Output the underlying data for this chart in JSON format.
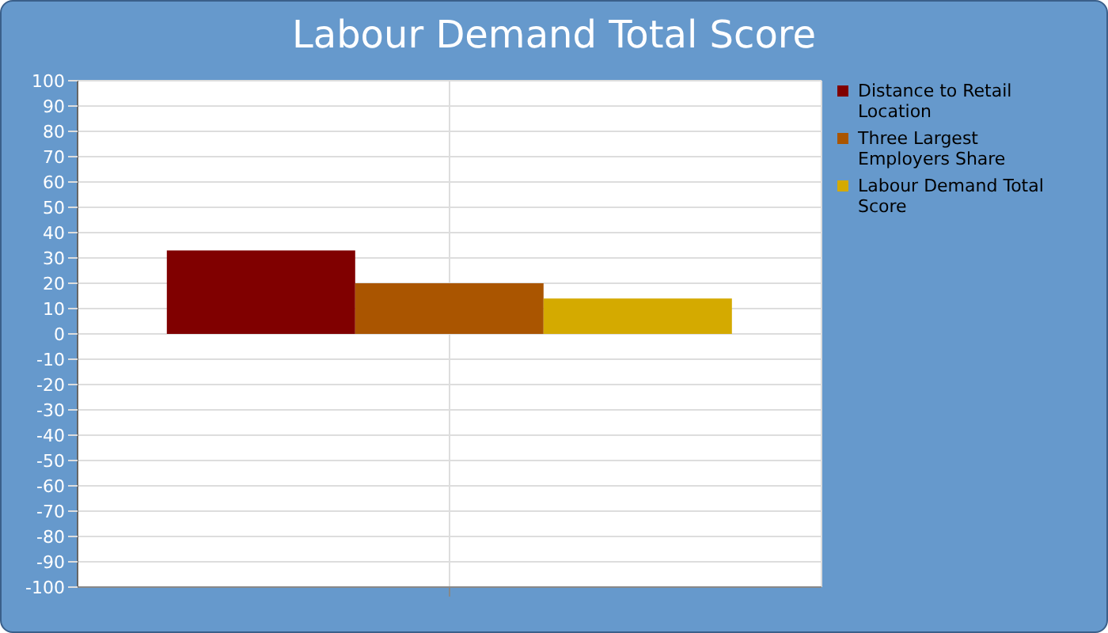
{
  "chart_data": {
    "type": "bar",
    "title": "Labour Demand Total Score",
    "categories": [
      null
    ],
    "series": [
      {
        "name": "Distance to Retail Location",
        "color": "#800000",
        "values": [
          33
        ]
      },
      {
        "name": "Three Largest Employers Share",
        "color": "#aa5500",
        "values": [
          20
        ]
      },
      {
        "name": "Labour Demand Total Score",
        "color": "#d4aa00",
        "values": [
          14
        ]
      }
    ],
    "ylim": [
      -100,
      100
    ],
    "yticks": [
      -100,
      -90,
      -80,
      -70,
      -60,
      -50,
      -40,
      -30,
      -20,
      -10,
      0,
      10,
      20,
      30,
      40,
      50,
      60,
      70,
      80,
      90,
      100
    ],
    "grid": true,
    "legend": "top right"
  }
}
